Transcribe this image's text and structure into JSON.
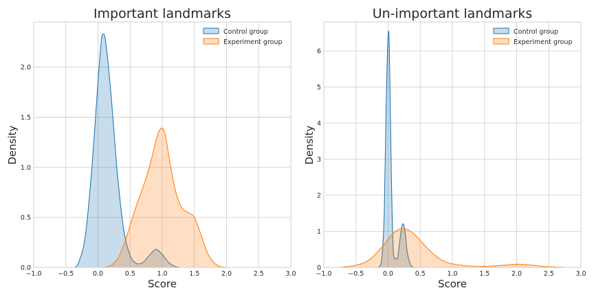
{
  "chart_data": [
    {
      "type": "area",
      "title": "Important landmarks",
      "xlabel": "Score",
      "ylabel": "Density",
      "xlim": [
        -1.0,
        3.0
      ],
      "ylim": [
        0,
        2.45
      ],
      "xticks": [
        "−1.0",
        "−0.5",
        "0.0",
        "0.5",
        "1.0",
        "1.5",
        "2.0",
        "2.5",
        "3.0"
      ],
      "xtick_values": [
        -1.0,
        -0.5,
        0.0,
        0.5,
        1.0,
        1.5,
        2.0,
        2.5,
        3.0
      ],
      "yticks": [
        "0.0",
        "0.5",
        "1.0",
        "1.5",
        "2.0"
      ],
      "ytick_values": [
        0.0,
        0.5,
        1.0,
        1.5,
        2.0
      ],
      "grid": true,
      "legend_position": "top-right",
      "series": [
        {
          "name": "Control group",
          "color": "#1f77b4",
          "x": [
            -0.36,
            -0.3,
            -0.2,
            -0.1,
            0.0,
            0.05,
            0.08,
            0.12,
            0.2,
            0.3,
            0.4,
            0.5,
            0.6,
            0.7,
            0.8,
            0.9,
            1.0,
            1.1,
            1.2,
            1.28
          ],
          "y": [
            0.0,
            0.05,
            0.3,
            0.95,
            1.85,
            2.25,
            2.33,
            2.25,
            1.75,
            0.95,
            0.38,
            0.12,
            0.04,
            0.05,
            0.12,
            0.18,
            0.13,
            0.05,
            0.01,
            0.0
          ]
        },
        {
          "name": "Experiment group",
          "color": "#ff7f0e",
          "x": [
            0.1,
            0.2,
            0.3,
            0.4,
            0.5,
            0.6,
            0.7,
            0.8,
            0.9,
            0.95,
            1.0,
            1.05,
            1.1,
            1.2,
            1.3,
            1.4,
            1.5,
            1.6,
            1.7,
            1.8,
            1.9,
            2.0
          ],
          "y": [
            0.0,
            0.02,
            0.08,
            0.22,
            0.42,
            0.62,
            0.8,
            1.0,
            1.26,
            1.36,
            1.39,
            1.32,
            1.12,
            0.78,
            0.6,
            0.55,
            0.5,
            0.33,
            0.15,
            0.05,
            0.01,
            0.0
          ]
        }
      ]
    },
    {
      "type": "area",
      "title": "Un-important landmarks",
      "xlabel": "Score",
      "ylabel": "Density",
      "xlim": [
        -1.0,
        3.0
      ],
      "ylim": [
        0,
        6.8
      ],
      "xticks": [
        "−1.0",
        "−0.5",
        "0.0",
        "0.5",
        "1.0",
        "1.5",
        "2.0",
        "2.5",
        "3.0"
      ],
      "xtick_values": [
        -1.0,
        -0.5,
        0.0,
        0.5,
        1.0,
        1.5,
        2.0,
        2.5,
        3.0
      ],
      "yticks": [
        "0",
        "1",
        "2",
        "3",
        "4",
        "5",
        "6"
      ],
      "ytick_values": [
        0,
        1,
        2,
        3,
        4,
        5,
        6
      ],
      "grid": true,
      "legend_position": "top-right",
      "series": [
        {
          "name": "Control group",
          "color": "#1f77b4",
          "x": [
            -0.15,
            -0.1,
            -0.06,
            -0.03,
            0.0,
            0.02,
            0.05,
            0.08,
            0.12,
            0.15,
            0.18,
            0.21,
            0.24,
            0.27,
            0.3,
            0.35,
            0.4
          ],
          "y": [
            0.0,
            0.2,
            1.5,
            4.5,
            6.4,
            6.0,
            2.6,
            0.5,
            0.25,
            0.3,
            0.7,
            1.1,
            1.2,
            0.9,
            0.4,
            0.08,
            0.0
          ]
        },
        {
          "name": "Experiment group",
          "color": "#ff7f0e",
          "x": [
            -0.75,
            -0.5,
            -0.3,
            -0.1,
            0.0,
            0.1,
            0.2,
            0.3,
            0.4,
            0.5,
            0.6,
            0.7,
            0.8,
            0.9,
            1.0,
            1.2,
            1.5,
            1.8,
            2.0,
            2.2,
            2.4,
            2.6,
            2.78
          ],
          "y": [
            0.0,
            0.06,
            0.2,
            0.55,
            0.78,
            0.98,
            1.07,
            1.05,
            0.93,
            0.75,
            0.55,
            0.38,
            0.24,
            0.15,
            0.1,
            0.05,
            0.03,
            0.06,
            0.09,
            0.07,
            0.03,
            0.01,
            0.0
          ]
        }
      ]
    }
  ]
}
